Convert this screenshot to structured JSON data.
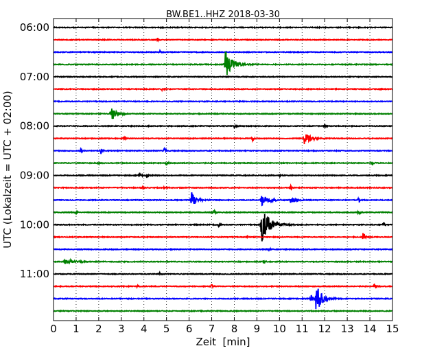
{
  "chart_data": {
    "type": "line",
    "title": "BW.BE1..HHZ 2018-03-30",
    "xlabel": "Zeit  [min]",
    "ylabel": "UTC (Lokalzeit = UTC + 02:00)",
    "xlim": [
      0,
      15
    ],
    "x_ticks": [
      "0",
      "1",
      "2",
      "3",
      "4",
      "5",
      "6",
      "7",
      "8",
      "9",
      "10",
      "11",
      "12",
      "13",
      "14",
      "15"
    ],
    "y_tick_labels": [
      "06:00",
      "07:00",
      "08:00",
      "09:00",
      "10:00",
      "11:00"
    ],
    "grid": "vertical dotted",
    "trace_minutes": 15,
    "color_cycle": [
      "#000000",
      "#ff0000",
      "#0000ff",
      "#008000"
    ],
    "traces": [
      {
        "start": "06:00",
        "events": []
      },
      {
        "start": "06:15",
        "events": [
          {
            "t": 4.6,
            "amp": 0.15
          }
        ]
      },
      {
        "start": "06:30",
        "events": [
          {
            "t": 4.7,
            "amp": 0.15
          }
        ]
      },
      {
        "start": "06:45",
        "events": [
          {
            "t": 7.6,
            "amp": 1.2,
            "dur": 0.6
          }
        ]
      },
      {
        "start": "07:00",
        "events": []
      },
      {
        "start": "07:15",
        "events": [
          {
            "t": 4.8,
            "amp": 0.12
          }
        ]
      },
      {
        "start": "07:30",
        "events": []
      },
      {
        "start": "07:45",
        "events": [
          {
            "t": 2.55,
            "amp": 0.7,
            "dur": 0.4
          }
        ]
      },
      {
        "start": "08:00",
        "events": [
          {
            "t": 8.0,
            "amp": 0.15
          },
          {
            "t": 12.0,
            "amp": 0.18
          }
        ]
      },
      {
        "start": "08:15",
        "events": [
          {
            "t": 11.1,
            "amp": 0.45,
            "dur": 0.6
          },
          {
            "t": 3.1,
            "amp": 0.15
          },
          {
            "t": 8.8,
            "amp": 0.2
          }
        ]
      },
      {
        "start": "08:30",
        "events": [
          {
            "t": 2.1,
            "amp": 0.3
          },
          {
            "t": 4.9,
            "amp": 0.2
          },
          {
            "t": 1.2,
            "amp": 0.15
          }
        ]
      },
      {
        "start": "08:45",
        "events": [
          {
            "t": 5.0,
            "amp": 0.2
          },
          {
            "t": 14.1,
            "amp": 0.2
          },
          {
            "t": 2.0,
            "amp": 0.1
          }
        ]
      },
      {
        "start": "09:00",
        "events": [
          {
            "t": 3.8,
            "amp": 0.25
          },
          {
            "t": 4.1,
            "amp": 0.15
          },
          {
            "t": 10.0,
            "amp": 0.15
          }
        ]
      },
      {
        "start": "09:15",
        "events": [
          {
            "t": 3.9,
            "amp": 0.2
          },
          {
            "t": 4.9,
            "amp": 0.15
          },
          {
            "t": 10.5,
            "amp": 0.15
          }
        ]
      },
      {
        "start": "09:30",
        "events": [
          {
            "t": 6.1,
            "amp": 0.7,
            "dur": 0.4
          },
          {
            "t": 9.2,
            "amp": 0.45,
            "dur": 0.6
          },
          {
            "t": 10.5,
            "amp": 0.2,
            "dur": 0.5
          },
          {
            "t": 13.5,
            "amp": 0.3
          }
        ]
      },
      {
        "start": "09:45",
        "events": [
          {
            "t": 7.1,
            "amp": 0.35
          },
          {
            "t": 13.5,
            "amp": 0.2
          },
          {
            "t": 1.0,
            "amp": 0.1
          }
        ]
      },
      {
        "start": "10:00",
        "events": [
          {
            "t": 9.2,
            "amp": 1.5,
            "dur": 0.7
          },
          {
            "t": 14.6,
            "amp": 0.3
          },
          {
            "t": 7.3,
            "amp": 0.2
          }
        ]
      },
      {
        "start": "10:15",
        "events": [
          {
            "t": 13.7,
            "amp": 0.6
          },
          {
            "t": 8.6,
            "amp": 0.12
          }
        ]
      },
      {
        "start": "10:30",
        "events": [
          {
            "t": 9.5,
            "amp": 0.15
          }
        ]
      },
      {
        "start": "10:45",
        "events": [
          {
            "t": 0.5,
            "amp": 0.15,
            "dur": 1.0
          },
          {
            "t": 9.3,
            "amp": 0.15
          }
        ]
      },
      {
        "start": "11:00",
        "events": [
          {
            "t": 4.7,
            "amp": 0.12
          }
        ]
      },
      {
        "start": "11:15",
        "events": [
          {
            "t": 7.0,
            "amp": 0.2
          },
          {
            "t": 14.2,
            "amp": 0.3
          },
          {
            "t": 3.7,
            "amp": 0.12
          }
        ]
      },
      {
        "start": "11:30",
        "events": [
          {
            "t": 11.6,
            "amp": 1.3,
            "dur": 0.5
          },
          {
            "t": 11.4,
            "amp": 0.3
          }
        ]
      },
      {
        "start": "11:45",
        "events": []
      }
    ]
  }
}
